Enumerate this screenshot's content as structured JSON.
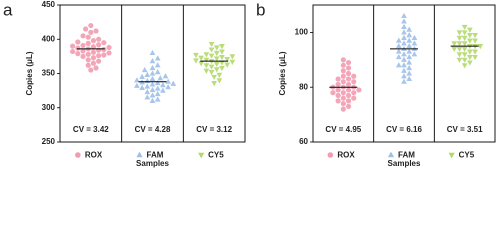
{
  "chart_data": [
    {
      "type": "swarm",
      "panel_label": "a",
      "ylabel": "Copies (μL)",
      "xlabel": "Samples",
      "ylim": [
        250,
        450
      ],
      "yticks": [
        250,
        300,
        350,
        400,
        450
      ],
      "annotations": [
        "CV = 3.42",
        "CV = 4.28",
        "CV = 3.12"
      ],
      "series": [
        {
          "name": "ROX",
          "color": "#f29cb0",
          "marker": "circle",
          "mean": 386,
          "values": [
            420,
            415,
            412,
            410,
            405,
            403,
            400,
            398,
            396,
            395,
            394,
            392,
            391,
            390,
            389,
            388,
            387,
            386,
            385,
            384,
            383,
            382,
            381,
            380,
            379,
            378,
            377,
            376,
            375,
            373,
            370,
            368,
            365,
            362,
            358,
            355
          ]
        },
        {
          "name": "FAM",
          "color": "#9fbfe8",
          "marker": "triangle-up",
          "mean": 338,
          "values": [
            380,
            372,
            368,
            362,
            358,
            355,
            352,
            350,
            348,
            346,
            345,
            343,
            342,
            340,
            339,
            338,
            337,
            336,
            335,
            334,
            333,
            332,
            331,
            330,
            329,
            328,
            326,
            325,
            323,
            320,
            318,
            315,
            312,
            310
          ]
        },
        {
          "name": "CY5",
          "color": "#b3d86a",
          "marker": "triangle-down",
          "mean": 368,
          "values": [
            393,
            390,
            388,
            385,
            382,
            380,
            378,
            377,
            376,
            375,
            374,
            373,
            372,
            371,
            370,
            369,
            368,
            367,
            366,
            365,
            364,
            363,
            362,
            360,
            358,
            356,
            354,
            352,
            348,
            345,
            340,
            336
          ]
        }
      ]
    },
    {
      "type": "swarm",
      "panel_label": "b",
      "ylabel": "Copies (μL)",
      "xlabel": "Samples",
      "ylim": [
        60,
        110
      ],
      "yticks": [
        60,
        80,
        100
      ],
      "annotations": [
        "CV = 4.95",
        "CV = 6.16",
        "CV = 3.51"
      ],
      "series": [
        {
          "name": "ROX",
          "color": "#f29cb0",
          "marker": "circle",
          "mean": 80,
          "values": [
            90,
            89,
            88,
            87,
            86,
            85,
            84,
            84,
            83,
            83,
            82,
            82,
            81,
            81,
            80,
            80,
            80,
            79,
            79,
            79,
            78,
            78,
            78,
            77,
            77,
            76,
            76,
            75,
            75,
            74,
            73,
            72
          ]
        },
        {
          "name": "FAM",
          "color": "#9fbfe8",
          "marker": "triangle-up",
          "mean": 94,
          "values": [
            106,
            104,
            102,
            101,
            100,
            99,
            98,
            98,
            97,
            97,
            96,
            96,
            95,
            95,
            94,
            94,
            93,
            93,
            92,
            92,
            91,
            91,
            90,
            89,
            88,
            88,
            87,
            86,
            85,
            84,
            83,
            82
          ]
        },
        {
          "name": "CY5",
          "color": "#b3d86a",
          "marker": "triangle-down",
          "mean": 95,
          "values": [
            102,
            101,
            100,
            100,
            99,
            99,
            98,
            98,
            97,
            97,
            96,
            96,
            96,
            95,
            95,
            95,
            94,
            94,
            94,
            93,
            93,
            92,
            92,
            91,
            91,
            90,
            90,
            89,
            88
          ]
        }
      ]
    }
  ]
}
